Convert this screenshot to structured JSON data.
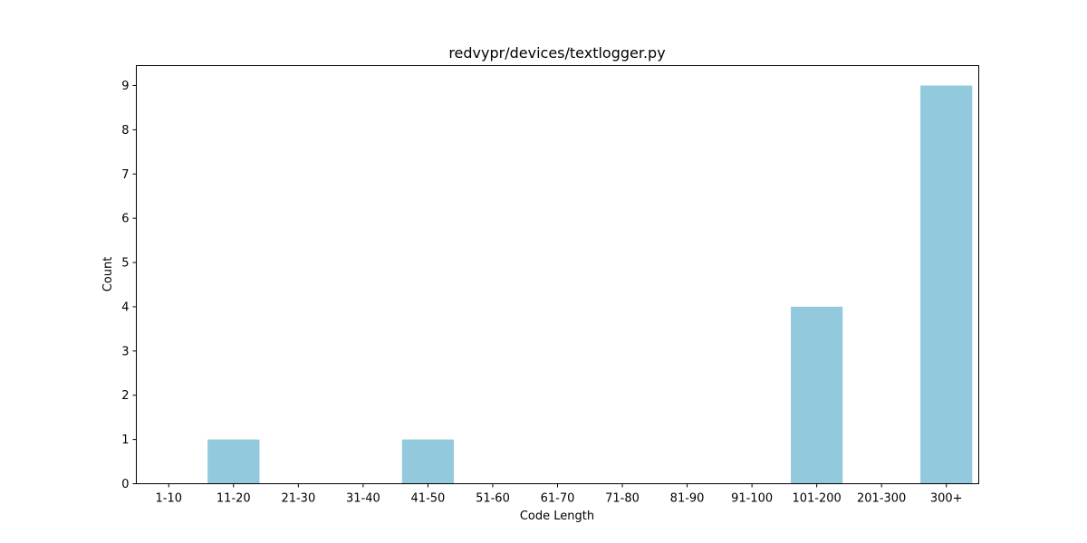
{
  "chart_data": {
    "type": "bar",
    "title": "redvypr/devices/textlogger.py",
    "xlabel": "Code Length",
    "ylabel": "Count",
    "categories": [
      "1-10",
      "11-20",
      "21-30",
      "31-40",
      "41-50",
      "51-60",
      "61-70",
      "71-80",
      "81-90",
      "91-100",
      "101-200",
      "201-300",
      "300+"
    ],
    "values": [
      0,
      1,
      0,
      0,
      1,
      0,
      0,
      0,
      0,
      0,
      4,
      0,
      9
    ],
    "y_ticks": [
      0,
      1,
      2,
      3,
      4,
      5,
      6,
      7,
      8,
      9
    ],
    "ylim": [
      0,
      9.45
    ],
    "grid": false,
    "bar_color": "#92c9dd"
  }
}
